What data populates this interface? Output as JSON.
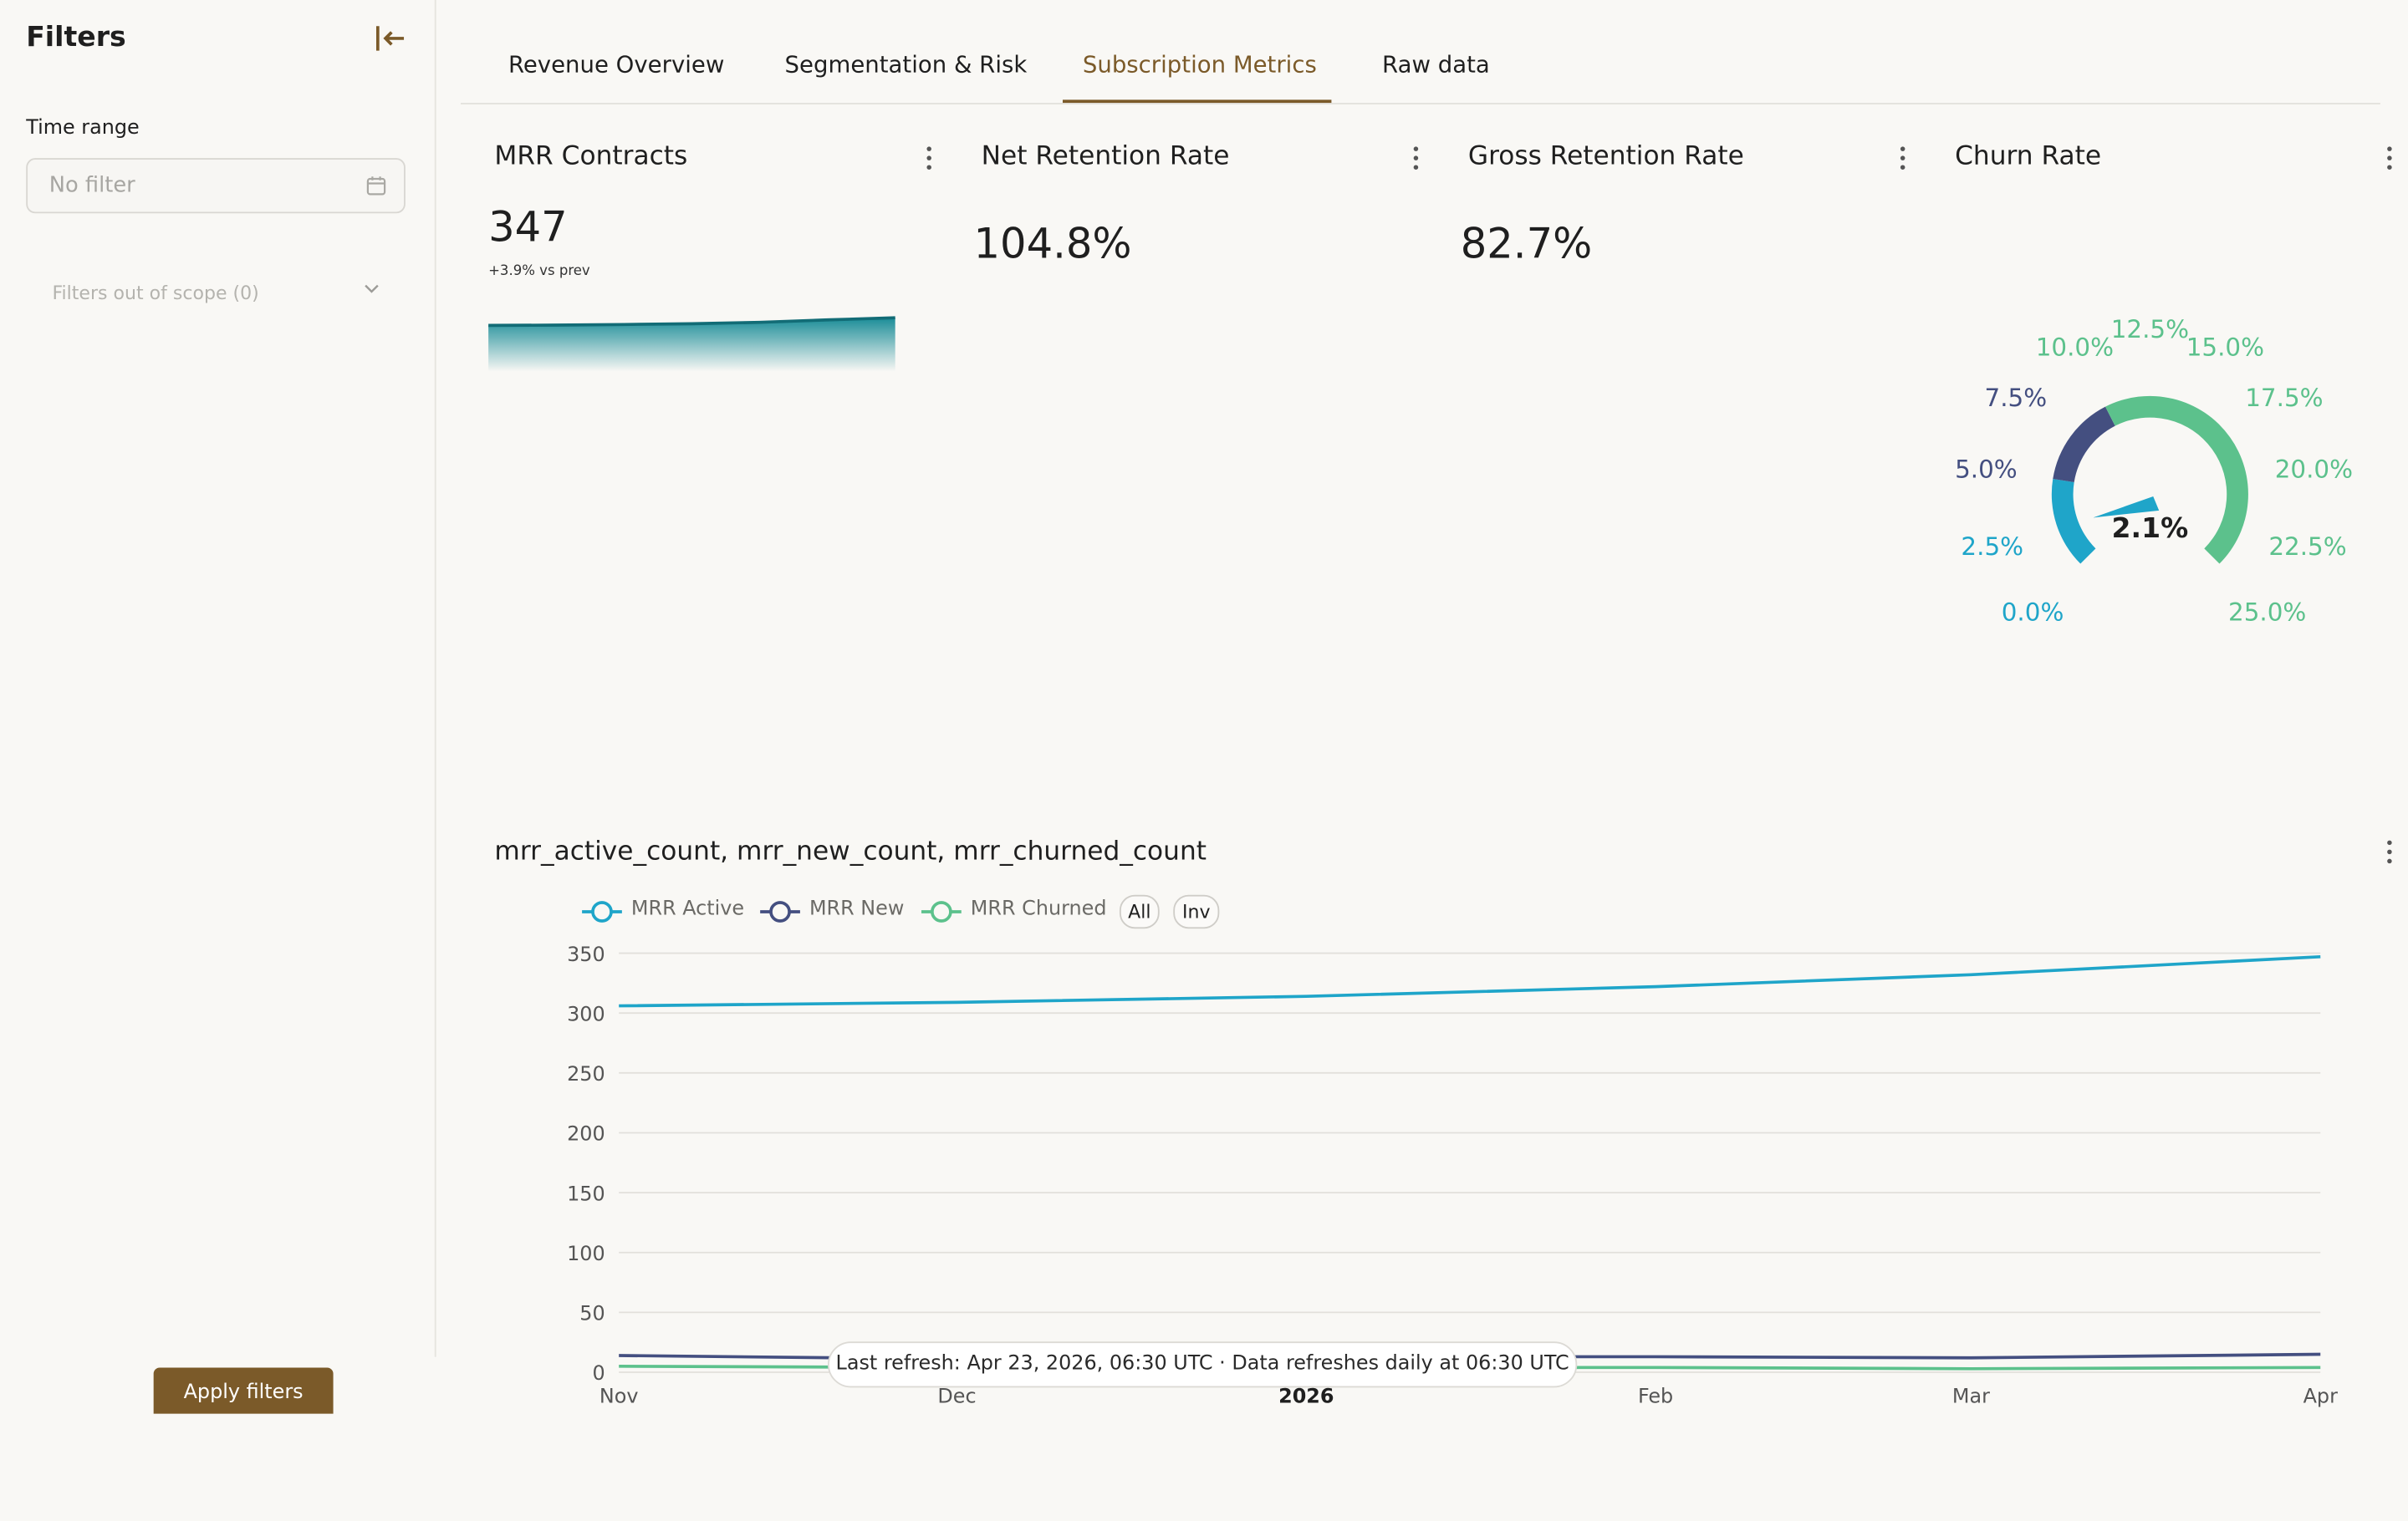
{
  "sidebar": {
    "title": "Filters",
    "time_range_label": "Time range",
    "time_range_placeholder": "No filter",
    "filters_out_of_scope": "Filters out of scope (0)",
    "apply_label": "Apply filters"
  },
  "tabs": [
    {
      "label": "Revenue Overview"
    },
    {
      "label": "Segmentation & Risk"
    },
    {
      "label": "Subscription Metrics",
      "active": true
    },
    {
      "label": "Raw data"
    }
  ],
  "kpis": {
    "mrr_contracts": {
      "title": "MRR Contracts",
      "value": "347",
      "delta": "+3.9% vs prev",
      "sparkline": [
        305,
        307,
        310,
        314,
        322,
        335,
        347
      ]
    },
    "net_retention": {
      "title": "Net Retention Rate",
      "value": "104.8%"
    },
    "gross_retention": {
      "title": "Gross Retention Rate",
      "value": "82.7%"
    },
    "churn_rate": {
      "title": "Churn Rate",
      "value": "2.1%",
      "gauge_value": 2.1,
      "min": 0,
      "max": 25,
      "ticks": [
        "0.0%",
        "2.5%",
        "5.0%",
        "7.5%",
        "10.0%",
        "12.5%",
        "15.0%",
        "17.5%",
        "20.0%",
        "22.5%",
        "25.0%"
      ],
      "bands": [
        {
          "from": 0,
          "to": 5,
          "color": "#1fa5c9"
        },
        {
          "from": 5,
          "to": 10,
          "color": "#444f80"
        },
        {
          "from": 10,
          "to": 25,
          "color": "#5cc18c"
        }
      ]
    }
  },
  "colors": {
    "accent": "#7b5a29",
    "active": "#1fa5c9",
    "new": "#444f80",
    "churned": "#5cc18c"
  },
  "chart": {
    "title": "mrr_active_count, mrr_new_count, mrr_churned_count",
    "legend_all": "All",
    "legend_inv": "Inv",
    "refresh_text": "Last refresh: Apr 23, 2026, 06:30 UTC · Data refreshes daily at 06:30 UTC"
  },
  "chart_data": {
    "type": "line",
    "title": "mrr_active_count, mrr_new_count, mrr_churned_count",
    "x": [
      "Nov",
      "Dec",
      "2026",
      "Feb",
      "Mar",
      "Apr"
    ],
    "x_positions": [
      0,
      30,
      61,
      92,
      120,
      151
    ],
    "series": [
      {
        "name": "MRR Active",
        "color": "#1fa5c9",
        "values": [
          306,
          309,
          314,
          322,
          332,
          347
        ]
      },
      {
        "name": "MRR New",
        "color": "#444f80",
        "values": [
          14,
          11,
          13,
          13,
          12,
          15
        ]
      },
      {
        "name": "MRR Churned",
        "color": "#5cc18c",
        "values": [
          5,
          4,
          4,
          4,
          3,
          4
        ]
      }
    ],
    "xlabel": "",
    "ylabel": "",
    "ylim": [
      0,
      350
    ],
    "yticks": [
      0,
      50,
      100,
      150,
      200,
      250,
      300,
      350
    ],
    "grid": true,
    "legend": "top-left"
  }
}
